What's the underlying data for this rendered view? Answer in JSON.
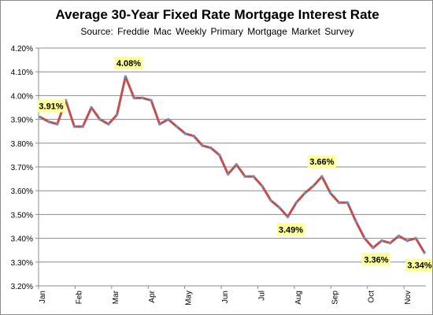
{
  "chart_data": {
    "type": "line",
    "title": "Average 30-Year Fixed Rate Mortgage Interest Rate",
    "subtitle": "Source:  Freddie  Mac Weekly  Primary  Mortgage Market Survey",
    "xlabel": "",
    "ylabel": "",
    "ylim": [
      3.2,
      4.2
    ],
    "yticks": [
      "4.20%",
      "4.10%",
      "4.00%",
      "3.90%",
      "3.80%",
      "3.70%",
      "3.60%",
      "3.50%",
      "3.40%",
      "3.30%",
      "3.20%"
    ],
    "xticks": [
      "Jan",
      "Feb",
      "Mar",
      "Apr",
      "May",
      "Jun",
      "Jul",
      "Aug",
      "Sep",
      "Oct",
      "Nov"
    ],
    "grid": true,
    "series": [
      {
        "values": [
          3.91,
          3.89,
          3.88,
          3.98,
          3.87,
          3.87,
          3.95,
          3.9,
          3.88,
          3.92,
          4.08,
          3.99,
          3.99,
          3.98,
          3.88,
          3.9,
          3.87,
          3.84,
          3.83,
          3.79,
          3.78,
          3.75,
          3.67,
          3.71,
          3.66,
          3.66,
          3.62,
          3.56,
          3.53,
          3.49,
          3.55,
          3.59,
          3.62,
          3.66,
          3.59,
          3.55,
          3.55,
          3.47,
          3.4,
          3.36,
          3.39,
          3.38,
          3.41,
          3.39,
          3.4,
          3.34
        ],
        "color": "#c0504d",
        "marker_color": "#6a8fc8"
      }
    ],
    "annotations": [
      {
        "label": "3.91%",
        "point_index": 0
      },
      {
        "label": "4.08%",
        "point_index": 10
      },
      {
        "label": "3.49%",
        "point_index": 29
      },
      {
        "label": "3.66%",
        "point_index": 33
      },
      {
        "label": "3.36%",
        "point_index": 39
      },
      {
        "label": "3.34%",
        "point_index": 45
      }
    ],
    "annotation_bg": "#ffff99"
  }
}
